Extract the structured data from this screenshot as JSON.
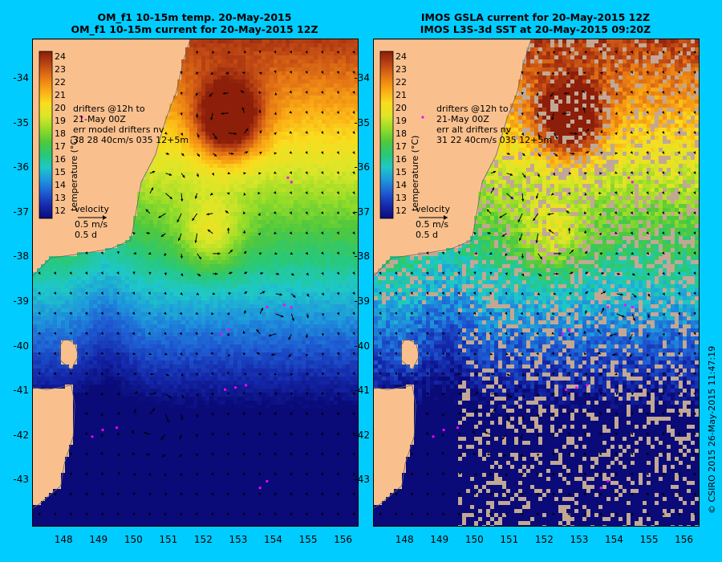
{
  "left_panel": {
    "title_line1": "OM_f1 10-15m temp. 20-May-2015",
    "title_line2": "OM_f1 10-15m current for 20-May-2015 12Z",
    "drifters_line1": "drifters @12h to",
    "drifters_line2": "21-May 00Z",
    "drifters_line3": "err model drifters nv",
    "drifters_line4": "38    28     40cm/s 035 12+5m",
    "velocity_label": "velocity",
    "velocity_speed": "0.5 m/s",
    "velocity_time": "0.5 d"
  },
  "right_panel": {
    "title_line1": "IMOS GSLA current for 20-May-2015 12Z",
    "title_line2": "IMOS L3S-3d SST at 20-May-2015 09:20Z",
    "drifters_line1": "drifters @12h to",
    "drifters_line2": "21-May 00Z",
    "drifters_line3": "err alt drifters nv",
    "drifters_line4": "31 22 40cm/s 035 12+5m",
    "velocity_label": "velocity",
    "velocity_speed": "0.5 m/s",
    "velocity_time": "0.5 d"
  },
  "copyright": "© CSIRO 2015   26-May-2015 11:47:19",
  "chart_data": [
    {
      "type": "heatmap",
      "xlim": [
        147.1,
        156.4
      ],
      "ylim": [
        -44.0,
        -33.1
      ],
      "x_ticks": [
        "148",
        "149",
        "150",
        "151",
        "152",
        "153",
        "154",
        "155",
        "156"
      ],
      "y_ticks": [
        "-34",
        "-35",
        "-36",
        "-37",
        "-38",
        "-39",
        "-40",
        "-41",
        "-42",
        "-43"
      ],
      "colorbar": {
        "label": "temperature (°C)",
        "ticks": [
          "24",
          "23",
          "22",
          "21",
          "20",
          "19",
          "18",
          "17",
          "16",
          "15",
          "14",
          "13",
          "12"
        ],
        "range": [
          11.5,
          24.5
        ]
      }
    },
    {
      "type": "heatmap",
      "xlim": [
        147.1,
        156.4
      ],
      "ylim": [
        -44.0,
        -33.1
      ],
      "x_ticks": [
        "148",
        "149",
        "150",
        "151",
        "152",
        "153",
        "154",
        "155",
        "156"
      ],
      "y_ticks": [
        "-34",
        "-35",
        "-36",
        "-37",
        "-38",
        "-39",
        "-40",
        "-41",
        "-42",
        "-43"
      ],
      "colorbar": {
        "label": "temperature (°C)",
        "ticks": [
          "24",
          "23",
          "22",
          "21",
          "20",
          "19",
          "18",
          "17",
          "16",
          "15",
          "14",
          "13",
          "12"
        ],
        "range": [
          11.5,
          24.5
        ]
      }
    }
  ],
  "colors": {
    "background": "#00ccff",
    "land": "#f9c08e",
    "missing_data": "#c2a894",
    "drifter": "#ff00ff"
  }
}
